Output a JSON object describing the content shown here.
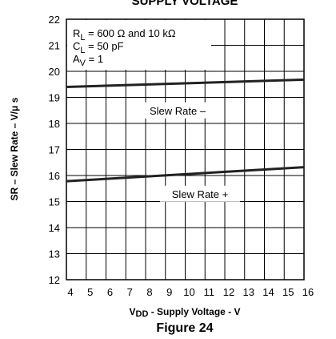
{
  "chart_data": {
    "type": "line",
    "title": "SUPPLY VOLTAGE",
    "x": [
      4,
      16
    ],
    "series": [
      {
        "name": "Slew Rate –",
        "color": "#222222",
        "values": [
          19.4,
          19.68
        ]
      },
      {
        "name": "Slew Rate +",
        "color": "#222222",
        "values": [
          15.78,
          16.32
        ]
      }
    ],
    "xlim": [
      4,
      16
    ],
    "xticks": [
      4,
      5,
      6,
      7,
      8,
      9,
      10,
      11,
      12,
      13,
      14,
      15,
      16
    ],
    "ylim": [
      12,
      22
    ],
    "yticks": [
      12,
      13,
      14,
      15,
      16,
      17,
      18,
      19,
      20,
      21,
      22
    ],
    "grid": true,
    "ylabel": "SR – Slew Rate – V/μ s",
    "xlabel": [
      "V",
      "DD",
      " - Supply Voltage - V"
    ],
    "annotations": [
      [
        "R",
        "L",
        " = 600 Ω and 10 kΩ"
      ],
      [
        "C",
        "L",
        " = 50 pF"
      ],
      [
        "A",
        "V",
        " = 1"
      ]
    ],
    "caption": "Figure 24"
  }
}
